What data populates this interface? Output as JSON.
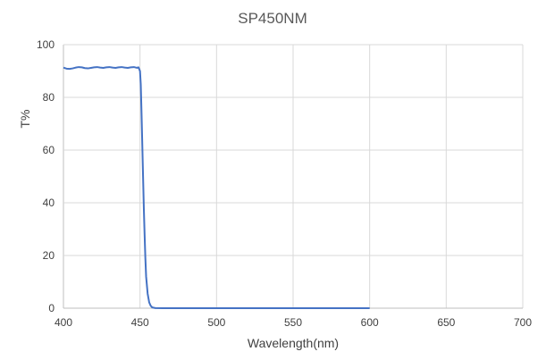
{
  "chart_data": {
    "type": "line",
    "title": "SP450NM",
    "xlabel": "Wavelength(nm)",
    "ylabel": "T%",
    "xlim": [
      400,
      700
    ],
    "ylim": [
      0,
      100
    ],
    "xticks": [
      400,
      450,
      500,
      550,
      600,
      650,
      700
    ],
    "yticks": [
      0,
      20,
      40,
      60,
      80,
      100
    ],
    "x_tick_labels": [
      "400",
      "450",
      "500",
      "550",
      "600",
      "650",
      "700"
    ],
    "y_tick_labels": [
      "0",
      "20",
      "40",
      "60",
      "80",
      "100"
    ],
    "grid": true,
    "legend": "none",
    "series": [
      {
        "color": "#4472c4",
        "points": [
          [
            400,
            91.3
          ],
          [
            402,
            90.9
          ],
          [
            404,
            90.8
          ],
          [
            406,
            91.0
          ],
          [
            408,
            91.3
          ],
          [
            410,
            91.5
          ],
          [
            412,
            91.4
          ],
          [
            414,
            91.1
          ],
          [
            416,
            91.0
          ],
          [
            418,
            91.2
          ],
          [
            420,
            91.4
          ],
          [
            422,
            91.5
          ],
          [
            424,
            91.3
          ],
          [
            426,
            91.2
          ],
          [
            428,
            91.4
          ],
          [
            430,
            91.5
          ],
          [
            432,
            91.3
          ],
          [
            434,
            91.2
          ],
          [
            436,
            91.4
          ],
          [
            438,
            91.5
          ],
          [
            440,
            91.3
          ],
          [
            442,
            91.2
          ],
          [
            444,
            91.4
          ],
          [
            446,
            91.5
          ],
          [
            448,
            91.2
          ],
          [
            449,
            91.4
          ],
          [
            450,
            90.0
          ],
          [
            450.5,
            85.0
          ],
          [
            451,
            74.0
          ],
          [
            451.5,
            62.0
          ],
          [
            452,
            50.0
          ],
          [
            452.5,
            38.0
          ],
          [
            453,
            28.0
          ],
          [
            453.5,
            19.0
          ],
          [
            454,
            12.0
          ],
          [
            455,
            5.5
          ],
          [
            456,
            2.2
          ],
          [
            457,
            0.9
          ],
          [
            458,
            0.3
          ],
          [
            460,
            0.05
          ],
          [
            465,
            0
          ],
          [
            500,
            0
          ],
          [
            550,
            0
          ],
          [
            600,
            0
          ]
        ]
      }
    ]
  }
}
